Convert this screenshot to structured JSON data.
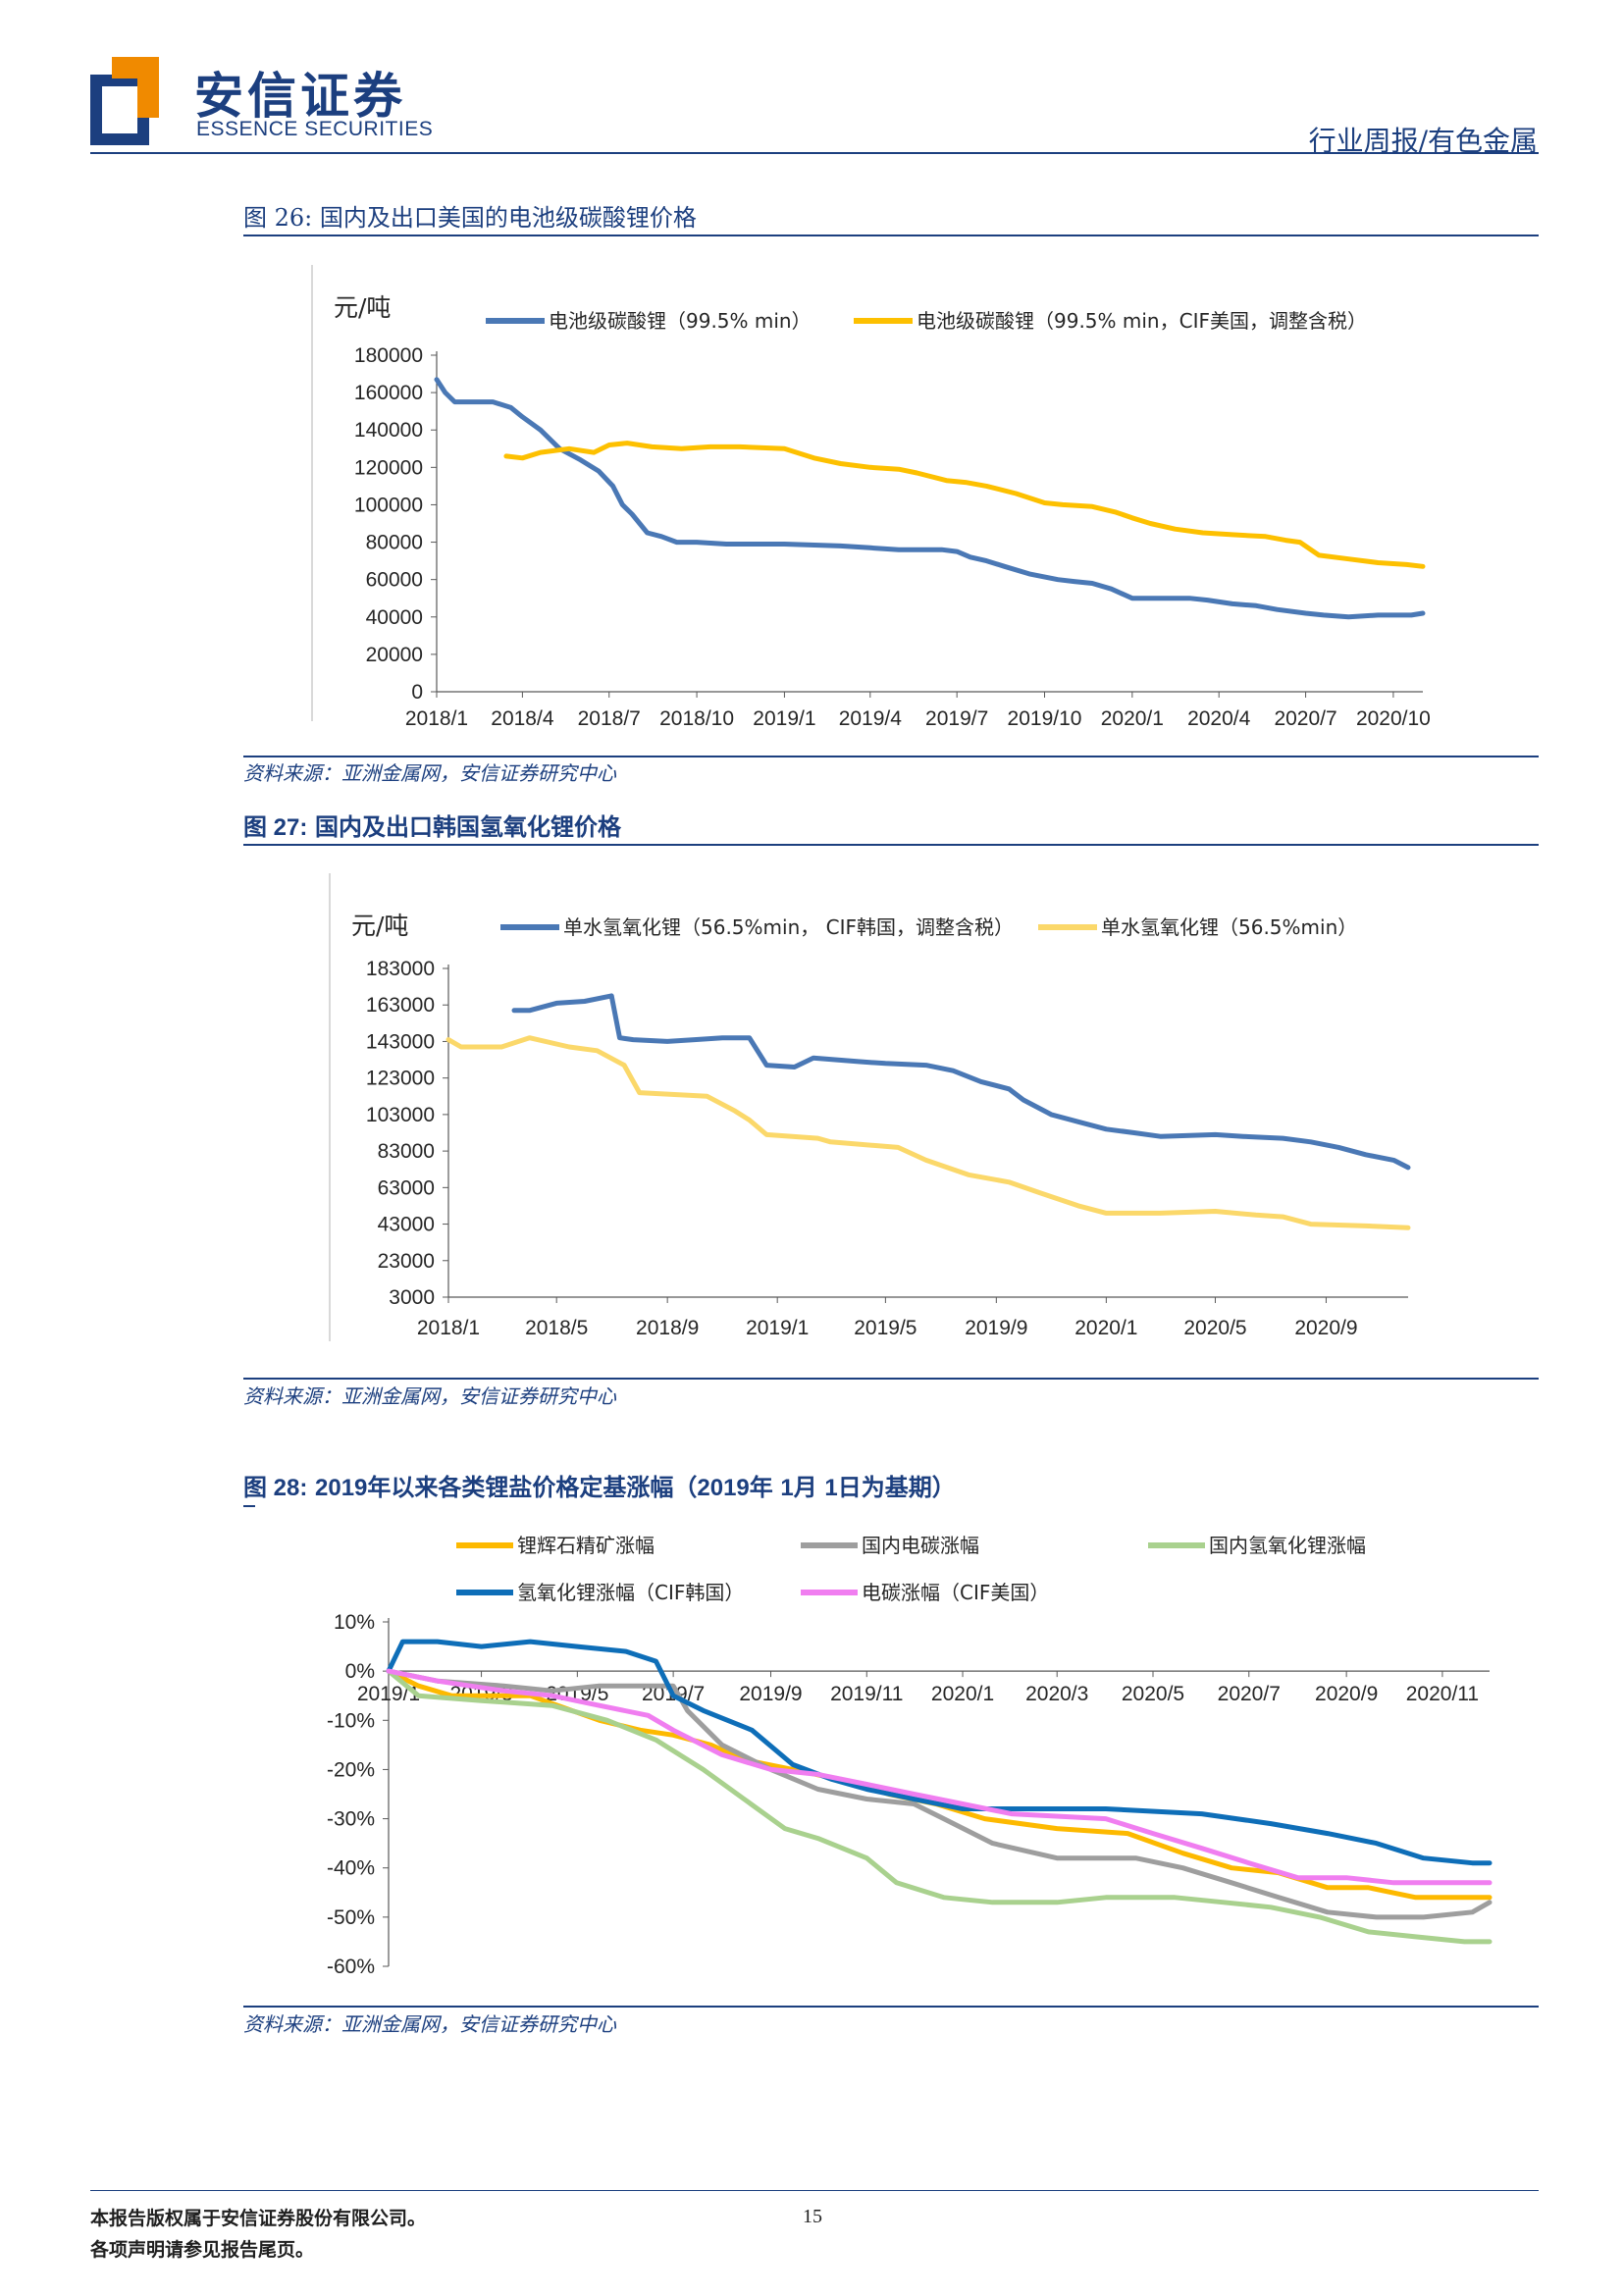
{
  "header": {
    "logo_cn": "安信证券",
    "logo_en": "ESSENCE SECURITIES",
    "logo_colors": {
      "blue": "#1c3f7f",
      "orange": "#f08a00"
    },
    "report_type": "行业周报/有色金属"
  },
  "figures": [
    {
      "title_prefix": "图 26:",
      "title_text": "国内及出口美国的电池级碳酸锂价格",
      "source": "资料来源：亚洲金属网，安信证券研究中心"
    },
    {
      "title_prefix": "图 27:",
      "title_text": "国内及出口韩国氢氧化锂价格",
      "source": "资料来源：亚洲金属网，安信证券研究中心"
    },
    {
      "title_prefix": "图 28:",
      "title_mid1": "2019",
      "title_mid2": "年以来各类锂盐价格定基涨幅（",
      "title_mid3": "2019",
      "title_mid4": "年",
      "title_mid5": "1",
      "title_mid6": "月",
      "title_mid7": "1",
      "title_mid8": "日为基期）",
      "source": "资料来源：亚洲金属网，安信证券研究中心"
    }
  ],
  "chart_data": [
    {
      "type": "line",
      "unit_label": "元/吨",
      "x_tick_labels": [
        "2018/1",
        "2018/4",
        "2018/7",
        "2018/10",
        "2019/1",
        "2019/4",
        "2019/7",
        "2019/10",
        "2020/1",
        "2020/4",
        "2020/7",
        "2020/10"
      ],
      "ylim": [
        0,
        180000
      ],
      "y_ticks": [
        "180000",
        "160000",
        "140000",
        "120000",
        "100000",
        "80000",
        "60000",
        "40000",
        "20000",
        "0"
      ],
      "x_domain": [
        "2018-01",
        "2020-11"
      ],
      "series": [
        {
          "name": "电池级碳酸锂（99.5%  min）",
          "color": "#4a78b5",
          "x": [
            "2018-01-01",
            "2018-01-10",
            "2018-01-20",
            "2018-03-01",
            "2018-03-20",
            "2018-04-01",
            "2018-04-20",
            "2018-05-10",
            "2018-06-01",
            "2018-06-20",
            "2018-07-05",
            "2018-07-15",
            "2018-07-25",
            "2018-08-10",
            "2018-08-25",
            "2018-09-10",
            "2018-10-01",
            "2018-11-01",
            "2019-01-01",
            "2019-03-01",
            "2019-04-01",
            "2019-05-01",
            "2019-06-15",
            "2019-07-01",
            "2019-07-15",
            "2019-08-01",
            "2019-08-20",
            "2019-09-15",
            "2019-10-15",
            "2019-11-01",
            "2019-11-20",
            "2019-12-10",
            "2020-01-01",
            "2020-03-01",
            "2020-03-20",
            "2020-04-15",
            "2020-05-10",
            "2020-06-01",
            "2020-07-01",
            "2020-07-20",
            "2020-08-15",
            "2020-09-15",
            "2020-10-20",
            "2020-11-01"
          ],
          "values": [
            167000,
            160000,
            155000,
            155000,
            152000,
            147000,
            140000,
            130000,
            124000,
            118000,
            110000,
            100000,
            95000,
            85000,
            83000,
            80000,
            80000,
            79000,
            79000,
            78000,
            77000,
            76000,
            76000,
            75000,
            72000,
            70000,
            67000,
            63000,
            60000,
            59000,
            58000,
            55000,
            50000,
            50000,
            49000,
            47000,
            46000,
            44000,
            42000,
            41000,
            40000,
            41000,
            41000,
            42000
          ]
        },
        {
          "name": "电池级碳酸锂（99.5%  min，CIF美国，调整含税）",
          "color": "#fdc000",
          "x": [
            "2018-03-15",
            "2018-04-01",
            "2018-04-20",
            "2018-05-20",
            "2018-06-15",
            "2018-07-01",
            "2018-07-20",
            "2018-08-15",
            "2018-09-15",
            "2018-10-15",
            "2018-11-15",
            "2019-01-01",
            "2019-02-01",
            "2019-03-01",
            "2019-04-01",
            "2019-05-01",
            "2019-05-20",
            "2019-06-20",
            "2019-07-10",
            "2019-08-01",
            "2019-09-01",
            "2019-10-01",
            "2019-10-20",
            "2019-11-20",
            "2019-12-15",
            "2020-01-01",
            "2020-01-20",
            "2020-02-15",
            "2020-03-15",
            "2020-04-15",
            "2020-05-20",
            "2020-06-10",
            "2020-06-25",
            "2020-07-15",
            "2020-08-15",
            "2020-09-15",
            "2020-10-15",
            "2020-11-01"
          ],
          "values": [
            126000,
            125000,
            128000,
            130000,
            128000,
            132000,
            133000,
            131000,
            130000,
            131000,
            131000,
            130000,
            125000,
            122000,
            120000,
            119000,
            117000,
            113000,
            112000,
            110000,
            106000,
            101000,
            100000,
            99000,
            96000,
            93000,
            90000,
            87000,
            85000,
            84000,
            83000,
            81000,
            80000,
            73000,
            71000,
            69000,
            68000,
            67000
          ]
        }
      ],
      "legend": "top"
    },
    {
      "type": "line",
      "unit_label": "元/吨",
      "x_tick_labels": [
        "2018/1",
        "2018/5",
        "2018/9",
        "2019/1",
        "2019/5",
        "2019/9",
        "2020/1",
        "2020/5",
        "2020/9"
      ],
      "ylim": [
        3000,
        183000
      ],
      "y_ticks": [
        "183000",
        "163000",
        "143000",
        "123000",
        "103000",
        "83000",
        "63000",
        "43000",
        "23000",
        "3000"
      ],
      "x_domain": [
        "2018-01",
        "2020-12"
      ],
      "series": [
        {
          "name": "单水氢氧化锂（56.5%min，   CIF韩国，调整含税）",
          "color": "#4a78b5",
          "x": [
            "2018-03-15",
            "2018-04-01",
            "2018-05-01",
            "2018-06-01",
            "2018-07-01",
            "2018-07-10",
            "2018-07-25",
            "2018-09-01",
            "2018-10-01",
            "2018-11-01",
            "2018-12-01",
            "2018-12-20",
            "2019-01-20",
            "2019-02-10",
            "2019-04-01",
            "2019-05-01",
            "2019-06-15",
            "2019-07-15",
            "2019-08-15",
            "2019-09-15",
            "2019-10-01",
            "2019-11-01",
            "2019-12-01",
            "2020-01-01",
            "2020-02-01",
            "2020-03-01",
            "2020-05-01",
            "2020-06-01",
            "2020-07-15",
            "2020-08-15",
            "2020-09-15",
            "2020-10-15",
            "2020-11-15",
            "2020-12-01"
          ],
          "values": [
            160000,
            160000,
            164000,
            165000,
            168000,
            145000,
            144000,
            143000,
            144000,
            145000,
            145000,
            130000,
            129000,
            134000,
            132000,
            131000,
            130000,
            127000,
            121000,
            117000,
            111000,
            103000,
            99000,
            95000,
            93000,
            91000,
            92000,
            91000,
            90000,
            88000,
            85000,
            81000,
            78000,
            74000
          ]
        },
        {
          "name": "单水氢氧化锂（56.5%min）",
          "color": "#fbd86a",
          "x": [
            "2018-01-01",
            "2018-01-15",
            "2018-03-01",
            "2018-04-01",
            "2018-05-15",
            "2018-06-15",
            "2018-07-15",
            "2018-08-01",
            "2018-10-15",
            "2018-11-15",
            "2018-12-01",
            "2018-12-20",
            "2019-02-15",
            "2019-03-01",
            "2019-05-15",
            "2019-06-15",
            "2019-08-01",
            "2019-09-15",
            "2019-10-20",
            "2019-12-01",
            "2020-01-01",
            "2020-03-01",
            "2020-05-01",
            "2020-06-15",
            "2020-07-15",
            "2020-08-15",
            "2020-10-15",
            "2020-12-01"
          ],
          "values": [
            144000,
            140000,
            140000,
            145000,
            140000,
            138000,
            130000,
            115000,
            113000,
            105000,
            100000,
            92000,
            90000,
            88000,
            85000,
            78000,
            70000,
            66000,
            60000,
            53000,
            49000,
            49000,
            50000,
            48000,
            47000,
            43000,
            42000,
            41000
          ]
        }
      ],
      "legend": "top"
    },
    {
      "type": "line",
      "x_tick_labels": [
        "2019/1",
        "2019/3",
        "2019/5",
        "2019/7",
        "2019/9",
        "2019/11",
        "2020/1",
        "2020/3",
        "2020/5",
        "2020/7",
        "2020/9",
        "2020/11"
      ],
      "ylim": [
        -60,
        10
      ],
      "y_ticks": [
        "10%",
        "0%",
        "-10%",
        "-20%",
        "-30%",
        "-40%",
        "-50%",
        "-60%"
      ],
      "x_domain": [
        "2019-01",
        "2020-12"
      ],
      "series": [
        {
          "name": "锂辉石精矿涨幅",
          "color": "#fdb900",
          "x": [
            "2019-01-01",
            "2019-01-20",
            "2019-02-10",
            "2019-04-01",
            "2019-05-15",
            "2019-06-10",
            "2019-07-01",
            "2019-07-25",
            "2019-08-15",
            "2019-09-15",
            "2019-10-15",
            "2019-11-15",
            "2019-12-15",
            "2020-01-15",
            "2020-03-01",
            "2020-04-15",
            "2020-05-20",
            "2020-06-20",
            "2020-07-20",
            "2020-08-20",
            "2020-09-15",
            "2020-10-15",
            "2020-11-15",
            "2020-12-01"
          ],
          "values": [
            0,
            -3,
            -5,
            -5,
            -10,
            -12,
            -13,
            -15,
            -18,
            -20,
            -22,
            -25,
            -27,
            -30,
            -32,
            -33,
            -37,
            -40,
            -41,
            -44,
            -44,
            -46,
            -46,
            -46
          ]
        },
        {
          "name": "国内电碳涨幅",
          "color": "#9e9e9e",
          "x": [
            "2019-01-01",
            "2019-02-01",
            "2019-03-15",
            "2019-04-15",
            "2019-05-15",
            "2019-06-15",
            "2019-07-01",
            "2019-07-10",
            "2019-08-01",
            "2019-09-01",
            "2019-10-01",
            "2019-11-01",
            "2019-12-01",
            "2019-12-20",
            "2020-01-20",
            "2020-03-01",
            "2020-04-20",
            "2020-05-20",
            "2020-06-20",
            "2020-07-20",
            "2020-08-20",
            "2020-09-20",
            "2020-10-20",
            "2020-11-20",
            "2020-12-01"
          ],
          "values": [
            0,
            -2,
            -3,
            -4,
            -3,
            -3,
            -3,
            -8,
            -15,
            -20,
            -24,
            -26,
            -27,
            -30,
            -35,
            -38,
            -38,
            -40,
            -43,
            -46,
            -49,
            -50,
            -50,
            -49,
            -47
          ]
        },
        {
          "name": "国内氢氧化锂涨幅",
          "color": "#a9d18e",
          "x": [
            "2019-01-01",
            "2019-01-20",
            "2019-03-01",
            "2019-04-15",
            "2019-05-20",
            "2019-06-20",
            "2019-07-20",
            "2019-08-15",
            "2019-09-10",
            "2019-10-01",
            "2019-11-01",
            "2019-11-20",
            "2019-12-20",
            "2020-01-20",
            "2020-03-01",
            "2020-04-01",
            "2020-05-15",
            "2020-06-15",
            "2020-07-15",
            "2020-08-15",
            "2020-09-15",
            "2020-10-15",
            "2020-11-15",
            "2020-12-01"
          ],
          "values": [
            0,
            -5,
            -6,
            -7,
            -10,
            -14,
            -20,
            -26,
            -32,
            -34,
            -38,
            -43,
            -46,
            -47,
            -47,
            -46,
            -46,
            -47,
            -48,
            -50,
            -53,
            -54,
            -55,
            -55
          ]
        },
        {
          "name": "氢氧化锂涨幅（CIF韩国）",
          "color": "#0e6eb8",
          "x": [
            "2019-01-01",
            "2019-01-10",
            "2019-02-01",
            "2019-03-01",
            "2019-04-01",
            "2019-05-01",
            "2019-06-01",
            "2019-06-20",
            "2019-07-01",
            "2019-07-20",
            "2019-08-20",
            "2019-09-15",
            "2019-10-10",
            "2019-11-01",
            "2019-12-01",
            "2020-01-01",
            "2020-02-01",
            "2020-04-01",
            "2020-06-01",
            "2020-07-15",
            "2020-08-20",
            "2020-09-20",
            "2020-10-20",
            "2020-11-20",
            "2020-12-01"
          ],
          "values": [
            0,
            6,
            6,
            5,
            6,
            5,
            4,
            2,
            -5,
            -8,
            -12,
            -19,
            -22,
            -24,
            -26,
            -28,
            -28,
            -28,
            -29,
            -31,
            -33,
            -35,
            -38,
            -39,
            -39
          ]
        },
        {
          "name": "电碳涨幅（CIF美国）",
          "color": "#f07ef0",
          "x": [
            "2019-01-01",
            "2019-02-01",
            "2019-03-15",
            "2019-04-15",
            "2019-05-15",
            "2019-06-15",
            "2019-07-01",
            "2019-08-01",
            "2019-09-01",
            "2019-10-01",
            "2019-11-01",
            "2019-12-01",
            "2020-01-01",
            "2020-02-01",
            "2020-04-01",
            "2020-05-01",
            "2020-06-01",
            "2020-07-01",
            "2020-08-01",
            "2020-09-01",
            "2020-10-01",
            "2020-11-01",
            "2020-12-01"
          ],
          "values": [
            0,
            -2,
            -4,
            -5,
            -7,
            -9,
            -12,
            -17,
            -20,
            -21,
            -23,
            -25,
            -27,
            -29,
            -30,
            -33,
            -36,
            -39,
            -42,
            -42,
            -43,
            -43,
            -43
          ]
        }
      ],
      "legend": "top"
    }
  ],
  "footer": {
    "line1": "本报告版权属于安信证券股份有限公司。",
    "line2": "各项声明请参见报告尾页。",
    "page": "15"
  }
}
